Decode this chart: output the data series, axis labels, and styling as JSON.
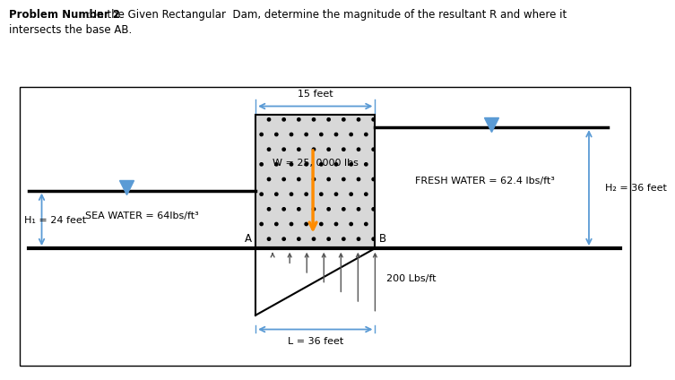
{
  "title_bold": "Problem Number 2",
  "title_rest": ": In the Given Rectangular  Dam, determine the magnitude of the resultant R and where it",
  "title_line2": "intersects the base AB.",
  "dam_label": "W = 25, 0000 lbs",
  "sea_water_label": "SEA WATER = 64lbs/ft³",
  "fresh_water_label": "FRESH WATER = 62.4 lbs/ft³",
  "h1_label": "H₁ = 24 feet",
  "h2_label": "H₂ = 36 feet",
  "width_label": "15 feet",
  "length_label": "L = 36 feet",
  "pressure_label": "200 Lbs/ft",
  "A_label": "A",
  "B_label": "B",
  "background": "#ffffff",
  "orange_line_color": "#FF8C00",
  "arrow_color": "#5B9BD5",
  "ground_color": "#000000",
  "dam_hatch": ".",
  "dam_facecolor": "#d8d8d8"
}
